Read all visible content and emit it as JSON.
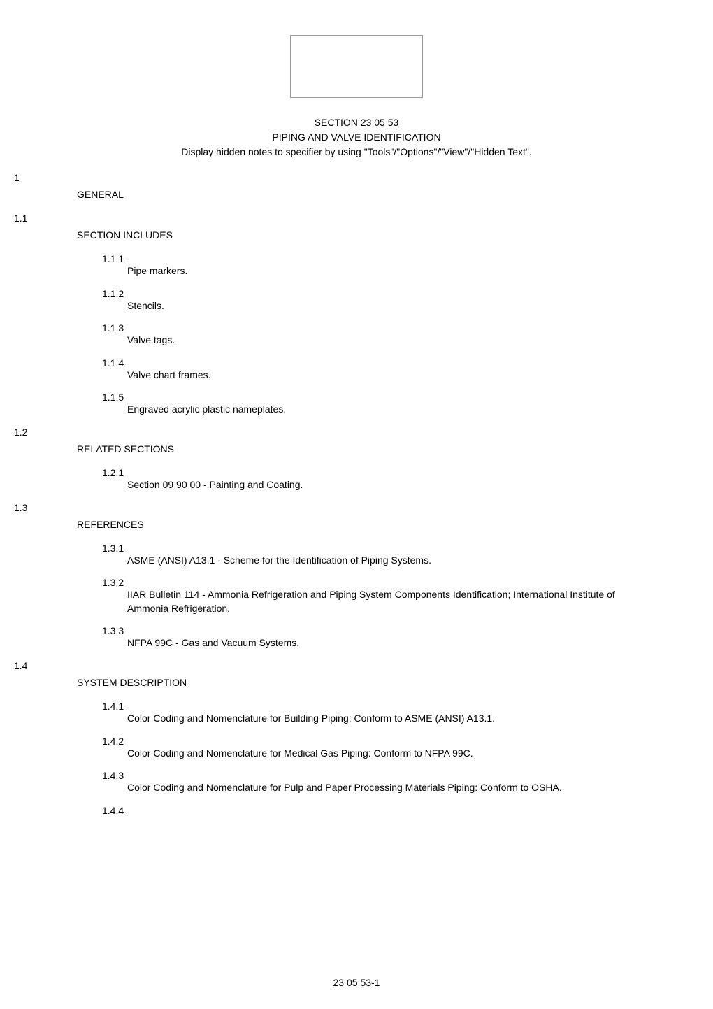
{
  "document": {
    "sectionNumber": "SECTION 23 05 53",
    "sectionTitle": "PIPING AND VALVE IDENTIFICATION",
    "sectionNote": "Display hidden notes to specifier by using \"Tools\"/\"Options\"/\"View\"/\"Hidden Text\".",
    "pageNumber": "23 05 53-1"
  },
  "parts": {
    "part1": {
      "number": "1",
      "title": "GENERAL"
    }
  },
  "sections": {
    "s1_1": {
      "number": "1.1",
      "title": "SECTION INCLUDES",
      "items": {
        "i1": {
          "number": "1.1.1",
          "text": "Pipe markers."
        },
        "i2": {
          "number": "1.1.2",
          "text": "Stencils."
        },
        "i3": {
          "number": "1.1.3",
          "text": "Valve tags."
        },
        "i4": {
          "number": "1.1.4",
          "text": "Valve chart frames."
        },
        "i5": {
          "number": "1.1.5",
          "text": "Engraved acrylic plastic nameplates."
        }
      }
    },
    "s1_2": {
      "number": "1.2",
      "title": "RELATED SECTIONS",
      "items": {
        "i1": {
          "number": "1.2.1",
          "text": "Section 09 90 00 - Painting and Coating."
        }
      }
    },
    "s1_3": {
      "number": "1.3",
      "title": "REFERENCES",
      "items": {
        "i1": {
          "number": "1.3.1",
          "text": "ASME (ANSI) A13.1 - Scheme for the Identification of Piping Systems."
        },
        "i2": {
          "number": "1.3.2",
          "text": "IIAR Bulletin 114 - Ammonia Refrigeration and Piping System Components Identification; International Institute of Ammonia Refrigeration."
        },
        "i3": {
          "number": "1.3.3",
          "text": "NFPA 99C - Gas and Vacuum Systems."
        }
      }
    },
    "s1_4": {
      "number": "1.4",
      "title": "SYSTEM DESCRIPTION",
      "items": {
        "i1": {
          "number": "1.4.1",
          "text": "Color Coding and Nomenclature for Building Piping: Conform to ASME (ANSI) A13.1."
        },
        "i2": {
          "number": "1.4.2",
          "text": "Color Coding and Nomenclature for Medical Gas Piping: Conform to NFPA 99C."
        },
        "i3": {
          "number": "1.4.3",
          "text": "Color Coding and Nomenclature for Pulp and Paper Processing Materials Piping: Conform to OSHA."
        },
        "i4": {
          "number": "1.4.4",
          "text": ""
        }
      }
    }
  }
}
